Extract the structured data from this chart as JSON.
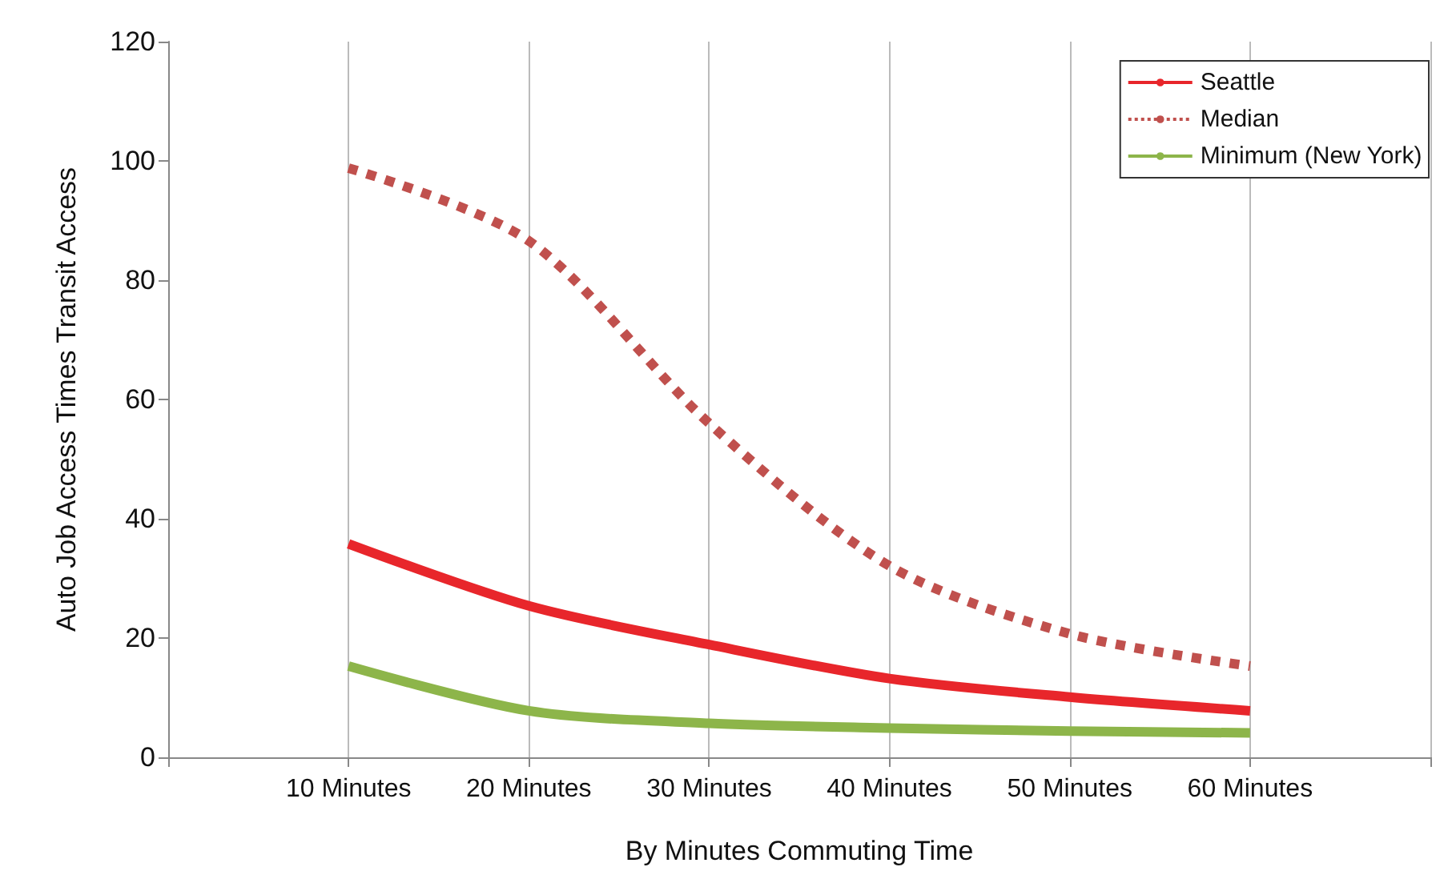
{
  "chart_data": {
    "type": "line",
    "xlabel": "By Minutes Commuting Time",
    "ylabel": "Auto Job Access Times Transit Access",
    "categories": [
      null,
      "10 Minutes",
      "20 Minutes",
      "30 Minutes",
      "40 Minutes",
      "50 Minutes",
      "60 Minutes",
      null
    ],
    "series": [
      {
        "name": "Seattle",
        "color": "#e8262b",
        "line_style": "solid",
        "values": [
          null,
          35.8,
          25.4,
          18.9,
          13.2,
          10.1,
          7.8,
          null
        ]
      },
      {
        "name": "Median",
        "color": "#c0504d",
        "line_style": "dotted",
        "values": [
          null,
          98.8,
          86.6,
          56,
          32.1,
          20.7,
          15.3,
          null
        ]
      },
      {
        "name": "Minimum (New York)",
        "color": "#8db54a",
        "line_style": "solid",
        "values": [
          null,
          15.3,
          7.8,
          5.7,
          4.9,
          4.4,
          4.1,
          null
        ]
      }
    ],
    "ylim": [
      0,
      120
    ],
    "yticks": [
      0,
      20,
      40,
      60,
      80,
      100,
      120
    ],
    "grid": "x",
    "legend": "top right",
    "marker": "none"
  }
}
